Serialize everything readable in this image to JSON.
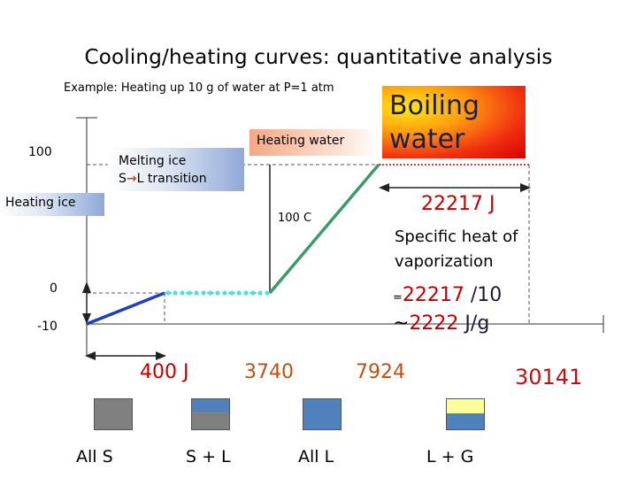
{
  "title": "Cooling/heating curves: quantitative analysis",
  "subtitle": "Example: Heating up 10 g of water at P=1 atm",
  "y_labels": {
    "t100": "100",
    "t0": "0",
    "tm10": "-10"
  },
  "boxes": {
    "melting_line1": "Melting ice",
    "melting_s": "S",
    "melting_arrow": "→",
    "melting_l": "L transition",
    "heating_ice": "Heating ice",
    "heating_water": "Heating water",
    "boiling": "Boiling water"
  },
  "annotations": {
    "temp_100c": "100 C",
    "vap_heat": "22217 J",
    "specific_heat": "Specific heat of vaporization",
    "calc_prefix": "=",
    "calc_num": "22217",
    "calc_div": " /10",
    "approx": "~",
    "approx_num": "2222",
    "approx_unit": " J/g"
  },
  "x_values": {
    "v1": "400 J",
    "v2": "3740",
    "v3": "7924",
    "v4": "30141"
  },
  "legend": [
    {
      "label": "All  S",
      "top_color": "#808080",
      "bottom_color": "#808080"
    },
    {
      "label": "S + L",
      "top_color": "#4f81bd",
      "bottom_color": "#808080"
    },
    {
      "label": "All L",
      "top_color": "#4f81bd",
      "bottom_color": "#4f81bd"
    },
    {
      "label": "L + G",
      "top_color": "#ffff99",
      "bottom_color": "#4f81bd"
    }
  ],
  "colors": {
    "heating_ice_line": "#1f3fbf",
    "melting_line": "#4fe0d8",
    "heating_water_line": "#3a9a6a",
    "boiling_line": "#d04040"
  }
}
